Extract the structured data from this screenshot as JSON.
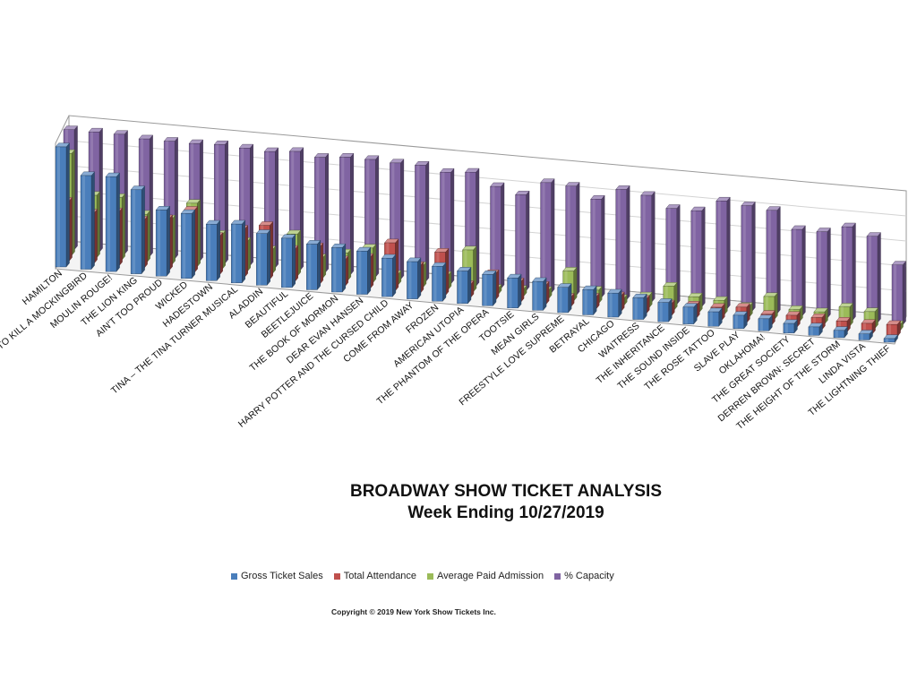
{
  "chart_data": {
    "type": "bar",
    "style": "3d-clustered-column",
    "title": "BROADWAY SHOW TICKET ANALYSIS",
    "subtitle": "Week Ending 10/27/2019",
    "legend_position": "bottom",
    "grid": true,
    "categories": [
      "HAMILTON",
      "TO KILL A MOCKINGBIRD",
      "MOULIN ROUGE!",
      "THE LION KING",
      "AIN'T TOO PROUD",
      "WICKED",
      "HADESTOWN",
      "TINA – THE TINA TURNER MUSICAL",
      "ALADDIN",
      "BEAUTIFUL",
      "BEETLEJUICE",
      "THE BOOK OF MORMON",
      "DEAR EVAN HANSEN",
      "HARRY POTTER AND THE CURSED CHILD",
      "COME FROM AWAY",
      "FROZEN",
      "AMERICAN UTOPIA",
      "THE PHANTOM OF THE OPERA",
      "TOOTSIE",
      "MEAN GIRLS",
      "FREESTYLE LOVE SUPREME",
      "BETRAYAL",
      "CHICAGO",
      "WAITRESS",
      "THE INHERITANCE",
      "THE SOUND INSIDE",
      "THE ROSE TATTOO",
      "SLAVE PLAY",
      "OKLAHOMA!",
      "THE GREAT SOCIETY",
      "DERREN BROWN: SECRET",
      "THE HEIGHT OF THE STORM",
      "LINDA VISTA",
      "THE LIGHTNING THIEF"
    ],
    "series": [
      {
        "name": "Gross Ticket Sales",
        "color": "#4a7ebb",
        "values": [
          100,
          78,
          79,
          70,
          55,
          54,
          47,
          49,
          43,
          41,
          38,
          37,
          36,
          32,
          31,
          29,
          27,
          26,
          25,
          24,
          21,
          21,
          20,
          18,
          16,
          14,
          12,
          11,
          10,
          8,
          7,
          6,
          5,
          3
        ]
      },
      {
        "name": "Total Attendance",
        "color": "#c0504d",
        "values": [
          50,
          42,
          45,
          40,
          43,
          52,
          32,
          40,
          45,
          27,
          31,
          22,
          26,
          40,
          23,
          36,
          11,
          22,
          17,
          16,
          8,
          10,
          13,
          12,
          10,
          11,
          11,
          13,
          9,
          10,
          10,
          9,
          9,
          10
        ]
      },
      {
        "name": "Average Paid Admission",
        "color": "#9bbb59",
        "values": [
          85,
          52,
          52,
          40,
          38,
          53,
          29,
          25,
          20,
          35,
          17,
          23,
          29,
          9,
          18,
          12,
          35,
          5,
          6,
          7,
          25,
          11,
          6,
          10,
          20,
          13,
          12,
          9,
          19,
          10,
          10,
          16,
          14,
          5
        ]
      },
      {
        "name": "% Capacity",
        "color": "#8064a2",
        "values": [
          100,
          100,
          100,
          98,
          98,
          98,
          99,
          98,
          97,
          99,
          96,
          98,
          98,
          97,
          97,
          93,
          95,
          85,
          80,
          92,
          91,
          82,
          92,
          89,
          80,
          80,
          90,
          88,
          86,
          72,
          72,
          78,
          72,
          50
        ]
      }
    ]
  },
  "copyright": "Copyright © 2019 New York Show Tickets Inc."
}
